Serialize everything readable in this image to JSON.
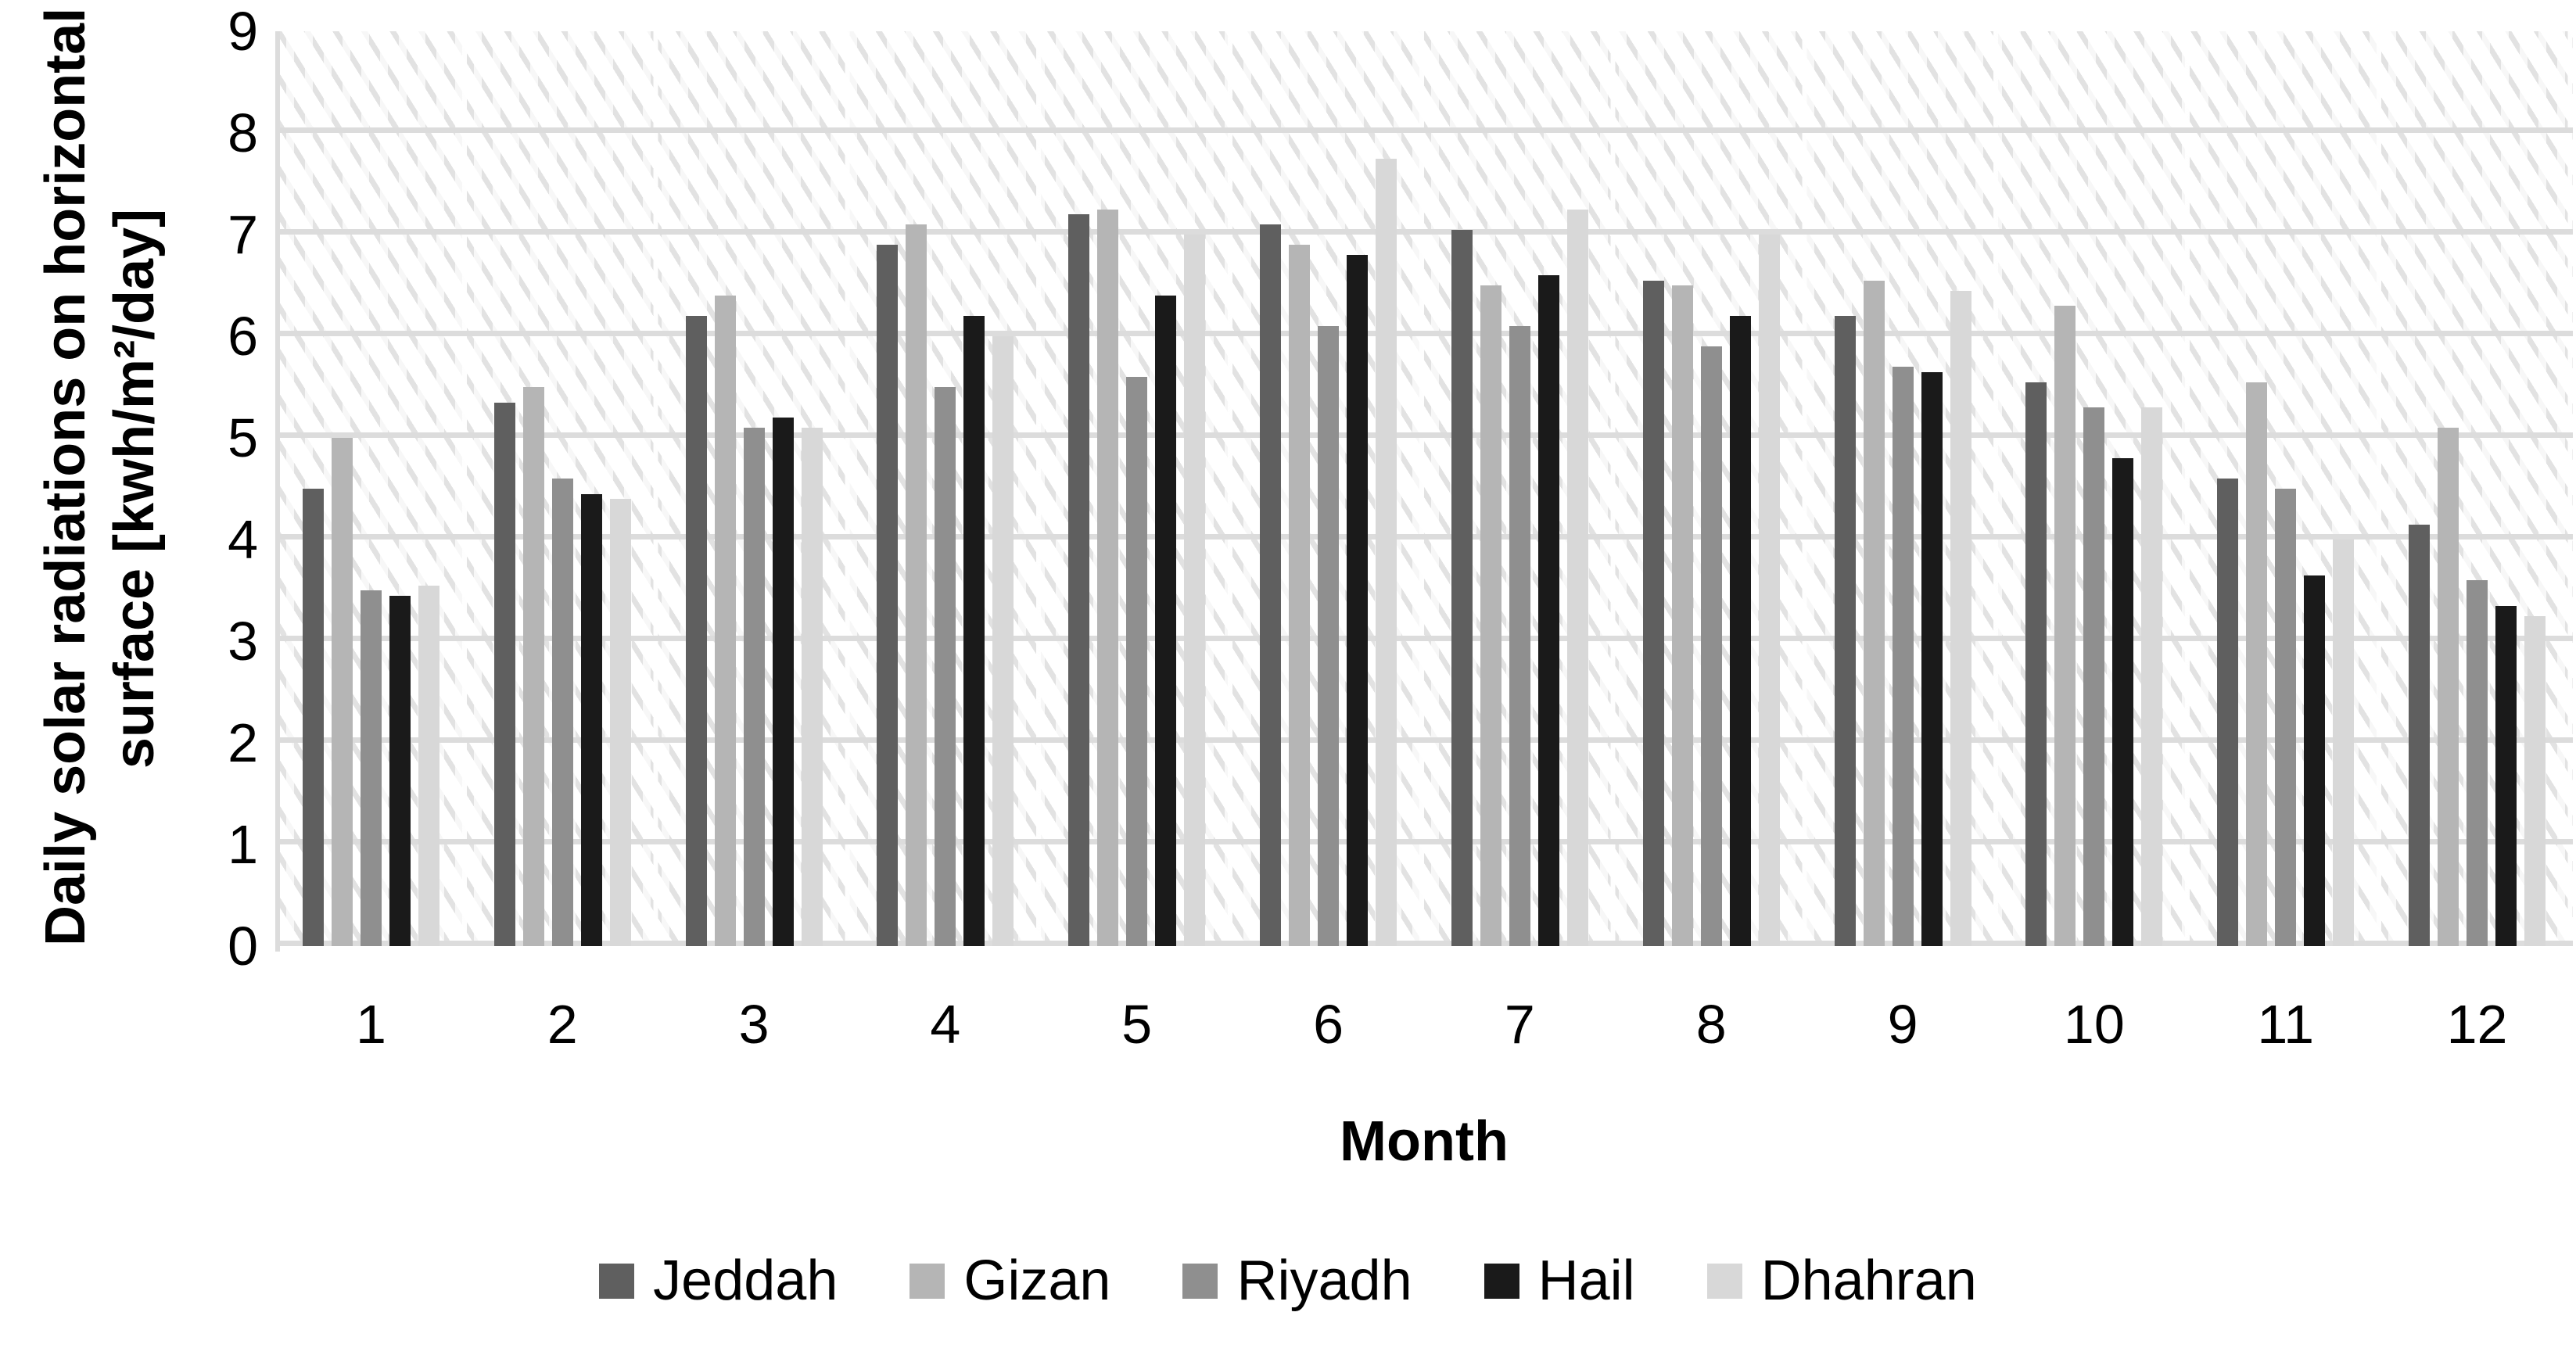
{
  "chart_data": {
    "type": "bar",
    "title": "",
    "xlabel": "Month",
    "ylabel_line1": "Daily solar radiations on horizontal",
    "ylabel_line2": "surface [kwh/m²/day]",
    "ylim": [
      0,
      9
    ],
    "yticks": [
      0,
      1,
      2,
      3,
      4,
      5,
      6,
      7,
      8,
      9
    ],
    "grid": "horizontal",
    "legend_position": "bottom",
    "plot_background": "diagonal-hatch",
    "categories": [
      "1",
      "2",
      "3",
      "4",
      "5",
      "6",
      "7",
      "8",
      "9",
      "10",
      "11",
      "12"
    ],
    "series": [
      {
        "name": "Jeddah",
        "color": "#5f5f5f",
        "values": [
          4.5,
          5.35,
          6.2,
          6.9,
          7.2,
          7.1,
          7.05,
          6.55,
          6.2,
          5.55,
          4.6,
          4.15
        ]
      },
      {
        "name": "Gizan",
        "color": "#b5b5b5",
        "values": [
          5.0,
          5.5,
          6.4,
          7.1,
          7.25,
          6.9,
          6.5,
          6.5,
          6.55,
          6.3,
          5.55,
          5.1
        ]
      },
      {
        "name": "Riyadh",
        "color": "#8f8f8f",
        "values": [
          3.5,
          4.6,
          5.1,
          5.5,
          5.6,
          6.1,
          6.1,
          5.9,
          5.7,
          5.3,
          4.5,
          3.6
        ]
      },
      {
        "name": "Hail",
        "color": "#1a1a1a",
        "values": [
          3.45,
          4.45,
          5.2,
          6.2,
          6.4,
          6.8,
          6.6,
          6.2,
          5.65,
          4.8,
          3.65,
          3.35
        ]
      },
      {
        "name": "Dhahran",
        "color": "#d8d8d8",
        "values": [
          3.55,
          4.4,
          5.1,
          6.0,
          7.0,
          7.75,
          7.25,
          7.0,
          6.45,
          5.3,
          4.0,
          3.25
        ]
      }
    ],
    "colors": {
      "gridline": "#dcdcdc",
      "hatch": "#e2e2e2",
      "text": "#000000"
    }
  }
}
